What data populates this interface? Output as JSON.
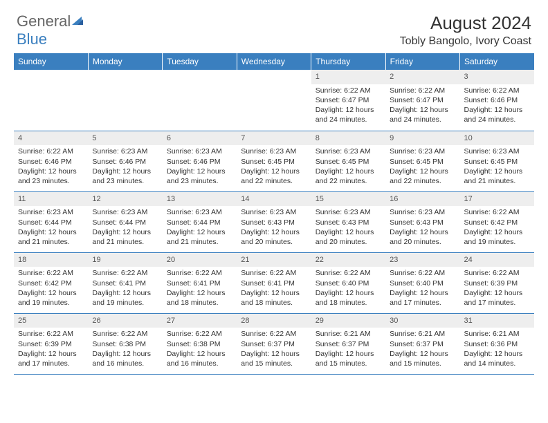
{
  "logo": {
    "part1": "General",
    "part2": "Blue"
  },
  "heading": {
    "month_title": "August 2024",
    "location": "Tobly Bangolo, Ivory Coast"
  },
  "colors": {
    "header_bg": "#3a7fbf",
    "header_text": "#ffffff",
    "daynum_bg": "#eeeeee",
    "row_border": "#3a7fbf",
    "body_text": "#333333",
    "logo_gray": "#666666",
    "logo_blue": "#3a7fbf",
    "page_bg": "#ffffff"
  },
  "weekdays": [
    "Sunday",
    "Monday",
    "Tuesday",
    "Wednesday",
    "Thursday",
    "Friday",
    "Saturday"
  ],
  "month": {
    "year": 2024,
    "name": "August",
    "first_weekday_index": 4,
    "days": [
      {
        "n": 1,
        "sunrise": "6:22 AM",
        "sunset": "6:47 PM",
        "daylight": "12 hours and 24 minutes."
      },
      {
        "n": 2,
        "sunrise": "6:22 AM",
        "sunset": "6:47 PM",
        "daylight": "12 hours and 24 minutes."
      },
      {
        "n": 3,
        "sunrise": "6:22 AM",
        "sunset": "6:46 PM",
        "daylight": "12 hours and 24 minutes."
      },
      {
        "n": 4,
        "sunrise": "6:22 AM",
        "sunset": "6:46 PM",
        "daylight": "12 hours and 23 minutes."
      },
      {
        "n": 5,
        "sunrise": "6:23 AM",
        "sunset": "6:46 PM",
        "daylight": "12 hours and 23 minutes."
      },
      {
        "n": 6,
        "sunrise": "6:23 AM",
        "sunset": "6:46 PM",
        "daylight": "12 hours and 23 minutes."
      },
      {
        "n": 7,
        "sunrise": "6:23 AM",
        "sunset": "6:45 PM",
        "daylight": "12 hours and 22 minutes."
      },
      {
        "n": 8,
        "sunrise": "6:23 AM",
        "sunset": "6:45 PM",
        "daylight": "12 hours and 22 minutes."
      },
      {
        "n": 9,
        "sunrise": "6:23 AM",
        "sunset": "6:45 PM",
        "daylight": "12 hours and 22 minutes."
      },
      {
        "n": 10,
        "sunrise": "6:23 AM",
        "sunset": "6:45 PM",
        "daylight": "12 hours and 21 minutes."
      },
      {
        "n": 11,
        "sunrise": "6:23 AM",
        "sunset": "6:44 PM",
        "daylight": "12 hours and 21 minutes."
      },
      {
        "n": 12,
        "sunrise": "6:23 AM",
        "sunset": "6:44 PM",
        "daylight": "12 hours and 21 minutes."
      },
      {
        "n": 13,
        "sunrise": "6:23 AM",
        "sunset": "6:44 PM",
        "daylight": "12 hours and 21 minutes."
      },
      {
        "n": 14,
        "sunrise": "6:23 AM",
        "sunset": "6:43 PM",
        "daylight": "12 hours and 20 minutes."
      },
      {
        "n": 15,
        "sunrise": "6:23 AM",
        "sunset": "6:43 PM",
        "daylight": "12 hours and 20 minutes."
      },
      {
        "n": 16,
        "sunrise": "6:23 AM",
        "sunset": "6:43 PM",
        "daylight": "12 hours and 20 minutes."
      },
      {
        "n": 17,
        "sunrise": "6:22 AM",
        "sunset": "6:42 PM",
        "daylight": "12 hours and 19 minutes."
      },
      {
        "n": 18,
        "sunrise": "6:22 AM",
        "sunset": "6:42 PM",
        "daylight": "12 hours and 19 minutes."
      },
      {
        "n": 19,
        "sunrise": "6:22 AM",
        "sunset": "6:41 PM",
        "daylight": "12 hours and 19 minutes."
      },
      {
        "n": 20,
        "sunrise": "6:22 AM",
        "sunset": "6:41 PM",
        "daylight": "12 hours and 18 minutes."
      },
      {
        "n": 21,
        "sunrise": "6:22 AM",
        "sunset": "6:41 PM",
        "daylight": "12 hours and 18 minutes."
      },
      {
        "n": 22,
        "sunrise": "6:22 AM",
        "sunset": "6:40 PM",
        "daylight": "12 hours and 18 minutes."
      },
      {
        "n": 23,
        "sunrise": "6:22 AM",
        "sunset": "6:40 PM",
        "daylight": "12 hours and 17 minutes."
      },
      {
        "n": 24,
        "sunrise": "6:22 AM",
        "sunset": "6:39 PM",
        "daylight": "12 hours and 17 minutes."
      },
      {
        "n": 25,
        "sunrise": "6:22 AM",
        "sunset": "6:39 PM",
        "daylight": "12 hours and 17 minutes."
      },
      {
        "n": 26,
        "sunrise": "6:22 AM",
        "sunset": "6:38 PM",
        "daylight": "12 hours and 16 minutes."
      },
      {
        "n": 27,
        "sunrise": "6:22 AM",
        "sunset": "6:38 PM",
        "daylight": "12 hours and 16 minutes."
      },
      {
        "n": 28,
        "sunrise": "6:22 AM",
        "sunset": "6:37 PM",
        "daylight": "12 hours and 15 minutes."
      },
      {
        "n": 29,
        "sunrise": "6:21 AM",
        "sunset": "6:37 PM",
        "daylight": "12 hours and 15 minutes."
      },
      {
        "n": 30,
        "sunrise": "6:21 AM",
        "sunset": "6:37 PM",
        "daylight": "12 hours and 15 minutes."
      },
      {
        "n": 31,
        "sunrise": "6:21 AM",
        "sunset": "6:36 PM",
        "daylight": "12 hours and 14 minutes."
      }
    ]
  },
  "labels": {
    "sunrise": "Sunrise:",
    "sunset": "Sunset:",
    "daylight": "Daylight:"
  }
}
